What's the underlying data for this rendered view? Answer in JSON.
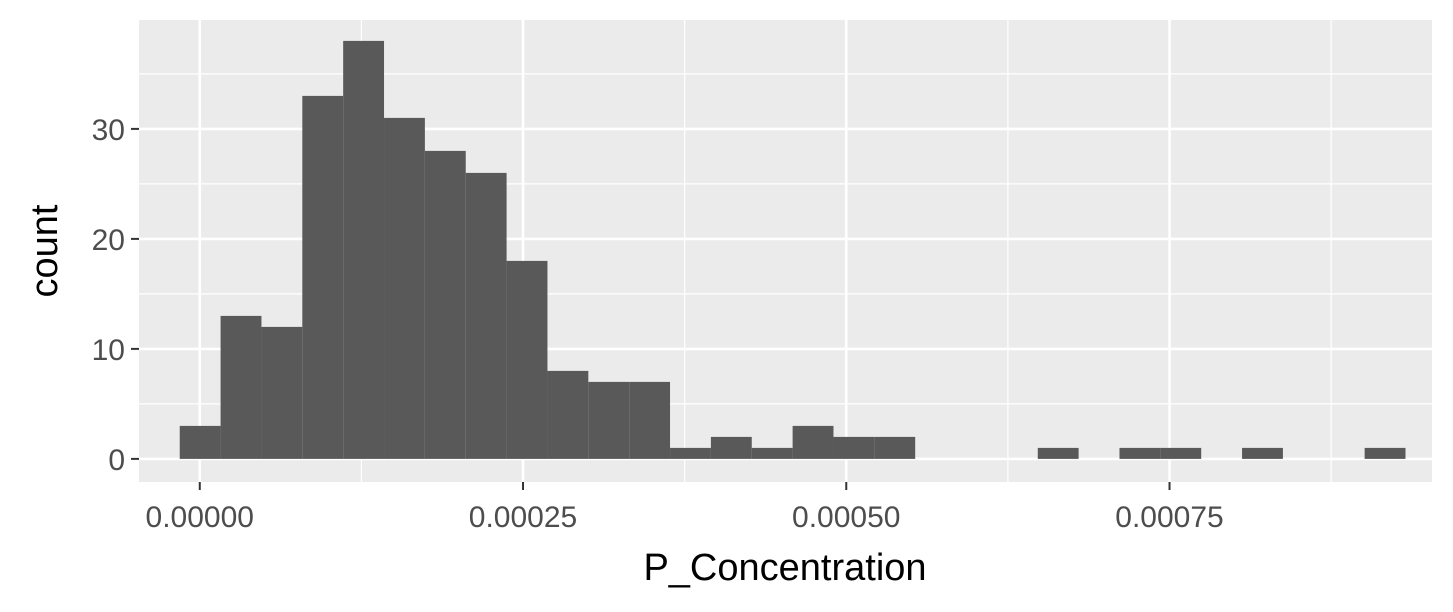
{
  "chart_data": {
    "type": "bar",
    "subtype": "histogram",
    "title": "",
    "xlabel": "P_Concentration",
    "ylabel": "count",
    "xlim": [
      -4.7e-05,
      0.000953
    ],
    "ylim": [
      -2.1,
      39.9
    ],
    "grid": true,
    "legend": "none",
    "colors": {
      "panel": "#ebebeb",
      "grid": "#ffffff",
      "bar": "#595959",
      "tick_text": "#4d4d4d",
      "title_text": "#000000"
    },
    "x_ticks": [
      {
        "value": 0.0,
        "label": "0.00000"
      },
      {
        "value": 0.00025,
        "label": "0.00025"
      },
      {
        "value": 0.0005,
        "label": "0.00050"
      },
      {
        "value": 0.00075,
        "label": "0.00075"
      }
    ],
    "y_ticks": [
      {
        "value": 0,
        "label": "0"
      },
      {
        "value": 10,
        "label": "10"
      },
      {
        "value": 20,
        "label": "20"
      },
      {
        "value": 30,
        "label": "30"
      }
    ],
    "bin_start": -1.55e-05,
    "bin_width": 3.16e-05,
    "counts": [
      3,
      13,
      12,
      33,
      38,
      31,
      28,
      26,
      18,
      8,
      7,
      7,
      1,
      2,
      1,
      3,
      2,
      2,
      0,
      0,
      0,
      1,
      0,
      1,
      1,
      0,
      1,
      0,
      0,
      1
    ]
  }
}
